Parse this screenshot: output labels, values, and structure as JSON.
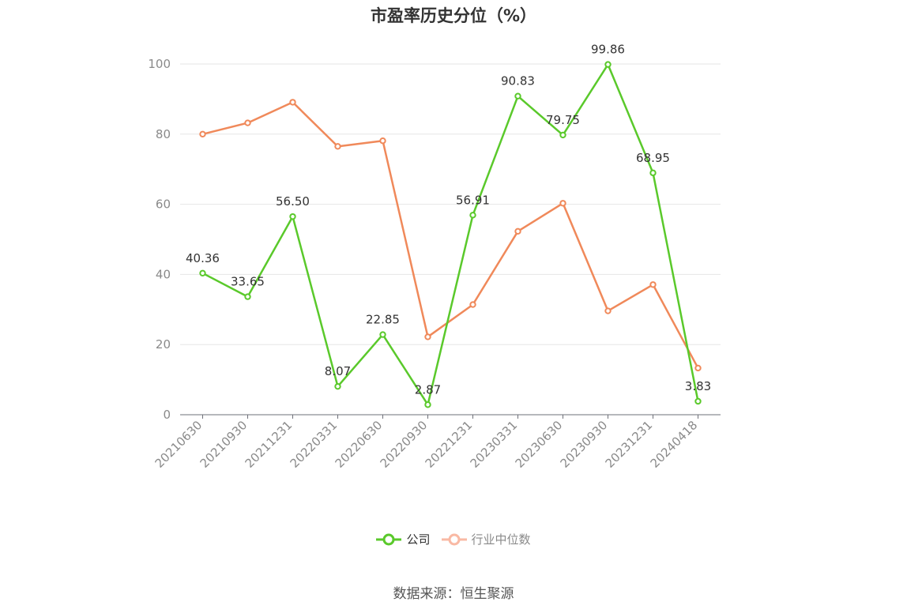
{
  "chart_data": {
    "type": "line",
    "title": "市盈率历史分位（%）",
    "categories": [
      "20210630",
      "20210930",
      "20211231",
      "20220331",
      "20220630",
      "20220930",
      "20221231",
      "20230331",
      "20230630",
      "20230930",
      "20231231",
      "20240418"
    ],
    "ylim": [
      0,
      100
    ],
    "yticks": [
      0,
      20,
      40,
      60,
      80,
      100
    ],
    "grid": true,
    "legend_position": "bottom",
    "series": [
      {
        "name": "公司",
        "color": "#5ac92b",
        "values": [
          40.36,
          33.65,
          56.5,
          8.07,
          22.85,
          2.87,
          56.91,
          90.83,
          79.75,
          99.86,
          68.95,
          3.83
        ],
        "labels": [
          "40.36",
          "33.65",
          "56.50",
          "8.07",
          "22.85",
          "2.87",
          "56.91",
          "90.83",
          "79.75",
          "99.86",
          "68.95",
          "3.83"
        ]
      },
      {
        "name": "行业中位数",
        "color": "#f0895a",
        "values": [
          80.0,
          83.2,
          89.1,
          76.5,
          78.1,
          22.2,
          31.4,
          52.3,
          60.3,
          29.6,
          37.1,
          13.3
        ]
      }
    ]
  },
  "legend": {
    "company": "公司",
    "industry": "行业中位数",
    "company_color": "#5ac92b",
    "industry_color": "#f9b9a4"
  },
  "source": "数据来源：恒生聚源"
}
